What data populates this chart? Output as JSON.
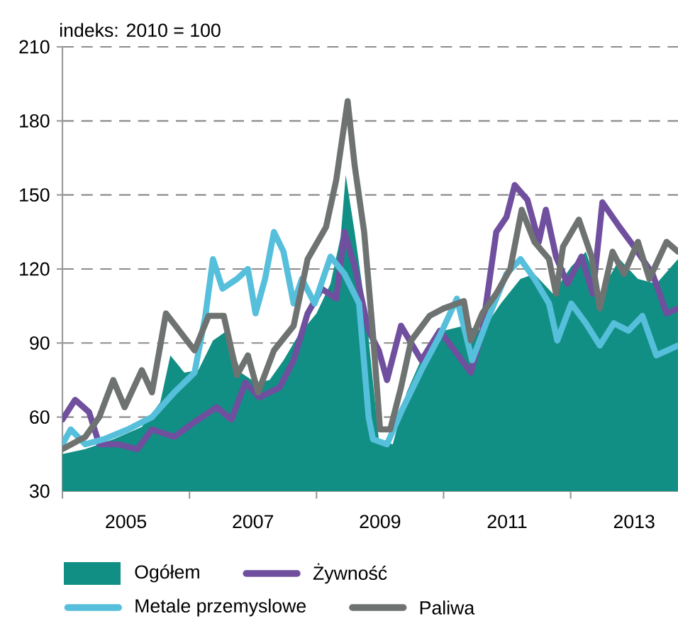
{
  "chart_data": {
    "type": "line",
    "ylabel": "indeks: 2010 = 100",
    "xlim": [
      2004,
      2013.69
    ],
    "ylim": [
      30,
      210
    ],
    "xticks": [
      {
        "value": 2004,
        "label": null
      },
      2005,
      {
        "value": 2006,
        "label": null
      },
      2007,
      {
        "value": 2008,
        "label": null
      },
      2009,
      {
        "value": 2010,
        "label": null
      },
      2011,
      {
        "value": 2012,
        "label": null
      },
      2013
    ],
    "yticks": [
      30,
      60,
      90,
      120,
      150,
      180,
      210
    ],
    "grid": "y",
    "legend": "bottom",
    "marker": "none",
    "series": [
      {
        "name": "Ogółem",
        "type": "area",
        "color": "#128f84",
        "x": [
          2004.0,
          2004.36,
          2004.8,
          2005.25,
          2005.54,
          2005.7,
          2005.92,
          2006.14,
          2006.37,
          2006.59,
          2006.81,
          2007.04,
          2007.26,
          2007.48,
          2007.71,
          2008.0,
          2008.22,
          2008.38,
          2008.46,
          2008.6,
          2008.78,
          2008.98,
          2009.2,
          2009.42,
          2009.71,
          2010.0,
          2010.32,
          2010.61,
          2010.9,
          2011.21,
          2011.43,
          2011.72,
          2012.01,
          2012.24,
          2012.46,
          2012.77,
          2013.06,
          2013.35,
          2013.69
        ],
        "values": [
          45,
          47,
          51,
          56,
          66,
          85,
          78,
          79,
          91,
          95,
          78,
          74,
          75,
          83,
          93,
          102,
          114,
          133,
          158,
          135,
          102,
          51,
          49,
          70,
          87,
          95,
          97,
          95,
          106,
          116,
          118,
          110,
          121,
          127,
          110,
          124,
          116,
          114,
          124
        ]
      },
      {
        "name": "Żywność",
        "type": "line",
        "color": "#6f4f9e",
        "x": [
          2004.0,
          2004.2,
          2004.42,
          2004.58,
          2004.87,
          2005.18,
          2005.41,
          2005.76,
          2006.08,
          2006.43,
          2006.66,
          2006.88,
          2007.1,
          2007.42,
          2007.64,
          2007.86,
          2008.08,
          2008.31,
          2008.44,
          2008.6,
          2008.82,
          2008.98,
          2009.11,
          2009.33,
          2009.65,
          2009.94,
          2010.23,
          2010.43,
          2010.61,
          2010.83,
          2010.99,
          2011.12,
          2011.32,
          2011.5,
          2011.61,
          2011.77,
          2011.95,
          2012.17,
          2012.35,
          2012.5,
          2012.77,
          2013.0,
          2013.29,
          2013.51,
          2013.69
        ],
        "values": [
          59,
          67,
          62,
          49,
          49,
          47,
          55,
          52,
          58,
          64,
          59,
          74,
          68,
          72,
          83,
          102,
          112,
          108,
          135,
          121,
          95,
          87,
          75,
          97,
          83,
          95,
          85,
          78,
          95,
          135,
          141,
          154,
          148,
          131,
          144,
          125,
          114,
          125,
          110,
          147,
          137,
          129,
          118,
          102,
          104
        ]
      },
      {
        "name": "Metale przemyslowe",
        "type": "line",
        "color": "#56bfdb",
        "x": [
          2004.0,
          2004.13,
          2004.36,
          2004.65,
          2005.03,
          2005.41,
          2005.76,
          2006.08,
          2006.25,
          2006.37,
          2006.52,
          2006.75,
          2006.92,
          2007.04,
          2007.19,
          2007.33,
          2007.48,
          2007.64,
          2007.77,
          2007.97,
          2008.22,
          2008.44,
          2008.67,
          2008.82,
          2008.89,
          2009.11,
          2009.33,
          2009.65,
          2009.94,
          2010.21,
          2010.45,
          2010.67,
          2010.99,
          2011.21,
          2011.43,
          2011.66,
          2011.79,
          2012.01,
          2012.24,
          2012.46,
          2012.68,
          2012.91,
          2013.13,
          2013.35,
          2013.69
        ],
        "values": [
          49,
          55,
          49,
          51,
          55,
          60,
          70,
          78,
          101,
          124,
          112,
          116,
          120,
          102,
          116,
          135,
          127,
          106,
          116,
          106,
          125,
          118,
          106,
          60,
          51,
          49,
          62,
          79,
          93,
          108,
          83,
          98,
          118,
          124,
          116,
          106,
          91,
          106,
          98,
          89,
          98,
          95,
          101,
          85,
          89
        ]
      },
      {
        "name": "Paliwa",
        "type": "line",
        "color": "#6e7372",
        "x": [
          2004.0,
          2004.36,
          2004.58,
          2004.8,
          2004.98,
          2005.25,
          2005.41,
          2005.63,
          2006.08,
          2006.3,
          2006.54,
          2006.75,
          2006.92,
          2007.08,
          2007.33,
          2007.64,
          2007.86,
          2008.15,
          2008.31,
          2008.49,
          2008.6,
          2008.75,
          2008.89,
          2009.0,
          2009.16,
          2009.33,
          2009.49,
          2009.78,
          2010.0,
          2010.32,
          2010.43,
          2010.61,
          2010.83,
          2011.05,
          2011.23,
          2011.43,
          2011.66,
          2011.77,
          2011.88,
          2012.13,
          2012.33,
          2012.46,
          2012.66,
          2012.84,
          2013.06,
          2013.24,
          2013.51,
          2013.69
        ],
        "values": [
          47,
          52,
          60,
          75,
          64,
          79,
          70,
          102,
          87,
          101,
          101,
          77,
          85,
          70,
          87,
          97,
          124,
          137,
          156,
          188,
          162,
          135,
          93,
          55,
          55,
          72,
          91,
          101,
          104,
          107,
          91,
          102,
          110,
          120,
          144,
          131,
          124,
          110,
          129,
          140,
          125,
          104,
          127,
          118,
          131,
          116,
          131,
          127
        ]
      }
    ]
  }
}
